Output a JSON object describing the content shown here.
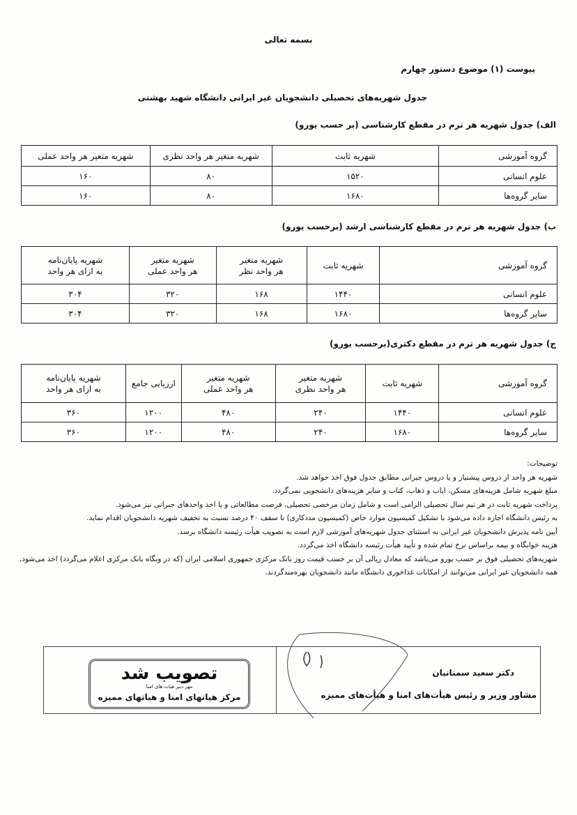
{
  "header": {
    "bismillah": "بسمه تعالی",
    "attachment": "پیوست (۱) موضوع دستور چهارم",
    "title": "جدول شهریه‌های تحصیلی دانشجویان غیر ایرانی دانشگاه شهید بهشتی"
  },
  "table_a": {
    "caption": "الف) جدول شهریه هر ترم در مقطع کارشناسی (بر حسب یورو)",
    "headers": [
      "گروه آموزشی",
      "شهریه ثابت",
      "شهریه متغیر هر واحد نظری",
      "شهریه متغیر هر واحد عملی"
    ],
    "rows": [
      [
        "علوم انسانی",
        "۱۵۲۰",
        "۸۰",
        "۱۶۰"
      ],
      [
        "سایر گروه‌ها",
        "۱۶۸۰",
        "۸۰",
        "۱۶۰"
      ]
    ]
  },
  "table_b": {
    "caption": "ب) جدول شهریه هر ترم در مقطع کارشناسی ارشد (برحسب یورو)",
    "headers": [
      "گروه آموزشی",
      "شهریه ثابت",
      "شهریه متغیر|هر واحد نظر",
      "شهریه متغیر|هر واحد عملی",
      "شهریه پایان‌نامه|به ازای هر واحد"
    ],
    "rows": [
      [
        "علوم انسانی",
        "۱۴۴۰",
        "۱۶۸",
        "۳۲۰",
        "۳۰۴"
      ],
      [
        "سایر گروه‌ها",
        "۱۶۸۰",
        "۱۶۸",
        "۳۲۰",
        "۳۰۴"
      ]
    ]
  },
  "table_c": {
    "caption": "ج) جدول شهریه هر ترم در مقطع دکتری(برحسب یورو)",
    "headers": [
      "گروه آموزشی",
      "شهریه ثابت",
      "شهریه متغیر|هر واحد نظری",
      "شهریه متغیر|هر واحد عملی",
      "ارزیابی جامع",
      "شهریه پایان‌نامه|به ازای هر واحد"
    ],
    "rows": [
      [
        "علوم انسانی",
        "۱۴۴۰",
        "۲۴۰",
        "۴۸۰",
        "۱۲۰۰",
        "۳۶۰"
      ],
      [
        "سایر گروه‌ها",
        "۱۶۸۰",
        "۲۴۰",
        "۴۸۰",
        "۱۲۰۰",
        "۳۶۰"
      ]
    ]
  },
  "notes": {
    "title": "توضیحات:",
    "items": [
      "شهریه هر واحد از دروس پیشنیاز و یا دروس جبرانی مطابق جدول فوق اخذ خواهد شد.",
      "مبلغ شهریه شامل هزینه‌های مسکن، ایاب و ذهاب، کتاب و سایر هزینه‌های دانشجویی نمی‌گردد.",
      "پرداخت شهریه ثابت در هر نیم سال تحصیلی الزامی است و شامل زمان مرخصی تحصیلی، فرصت مطالعاتی و یا اخذ واحدهای جبرانی نیز می‌شود.",
      "به رئیس دانشگاه اجازه داده می‌شود با تشکیل کمیسیون موارد خاص (کمیسیون مددکاری) تا سقف ۴۰ درصد نسبت به تخفیف شهریه دانشجویان اقدام نماید.",
      "آیین نامه پذیرش دانشجویان غیر ایرانی به استثنای جدول شهریه‌های آموزشی لازم است به تصویب هیأت رئیسه دانشگاه برسد.",
      "هزینه خوابگاه و بیمه براساس نرخ تمام شده و تأیید هیأت رئیسه دانشگاه اخذ می‌گردد.",
      "شهریه‌های تحصیلی فوق بر حسب یورو می‌باشد که معادل ریالی آن بر حسب قیمت روز بانک مرکزی جمهوری اسلامی ایران (که در وبگاه بانک مرکزی اعلام می‌گردد) اخذ می‌شود.",
      "همه دانشجویان غیر ایرانی می‌توانند از امکانات غذاخوری دانشگاه مانند دانشجویان بهره‌مندگردند."
    ]
  },
  "signature": {
    "name": "دکتر سعید سمنانیان",
    "position": "مشاور وزیر و رئیس هیأت‌های امنا و هیأت‌های ممیزه"
  },
  "stamp": {
    "approved": "تصویب شد",
    "small": "مهر دبیر هیات های امنا",
    "org": "مرکز هیاتهای امنا و هیاتهای ممیزه"
  }
}
